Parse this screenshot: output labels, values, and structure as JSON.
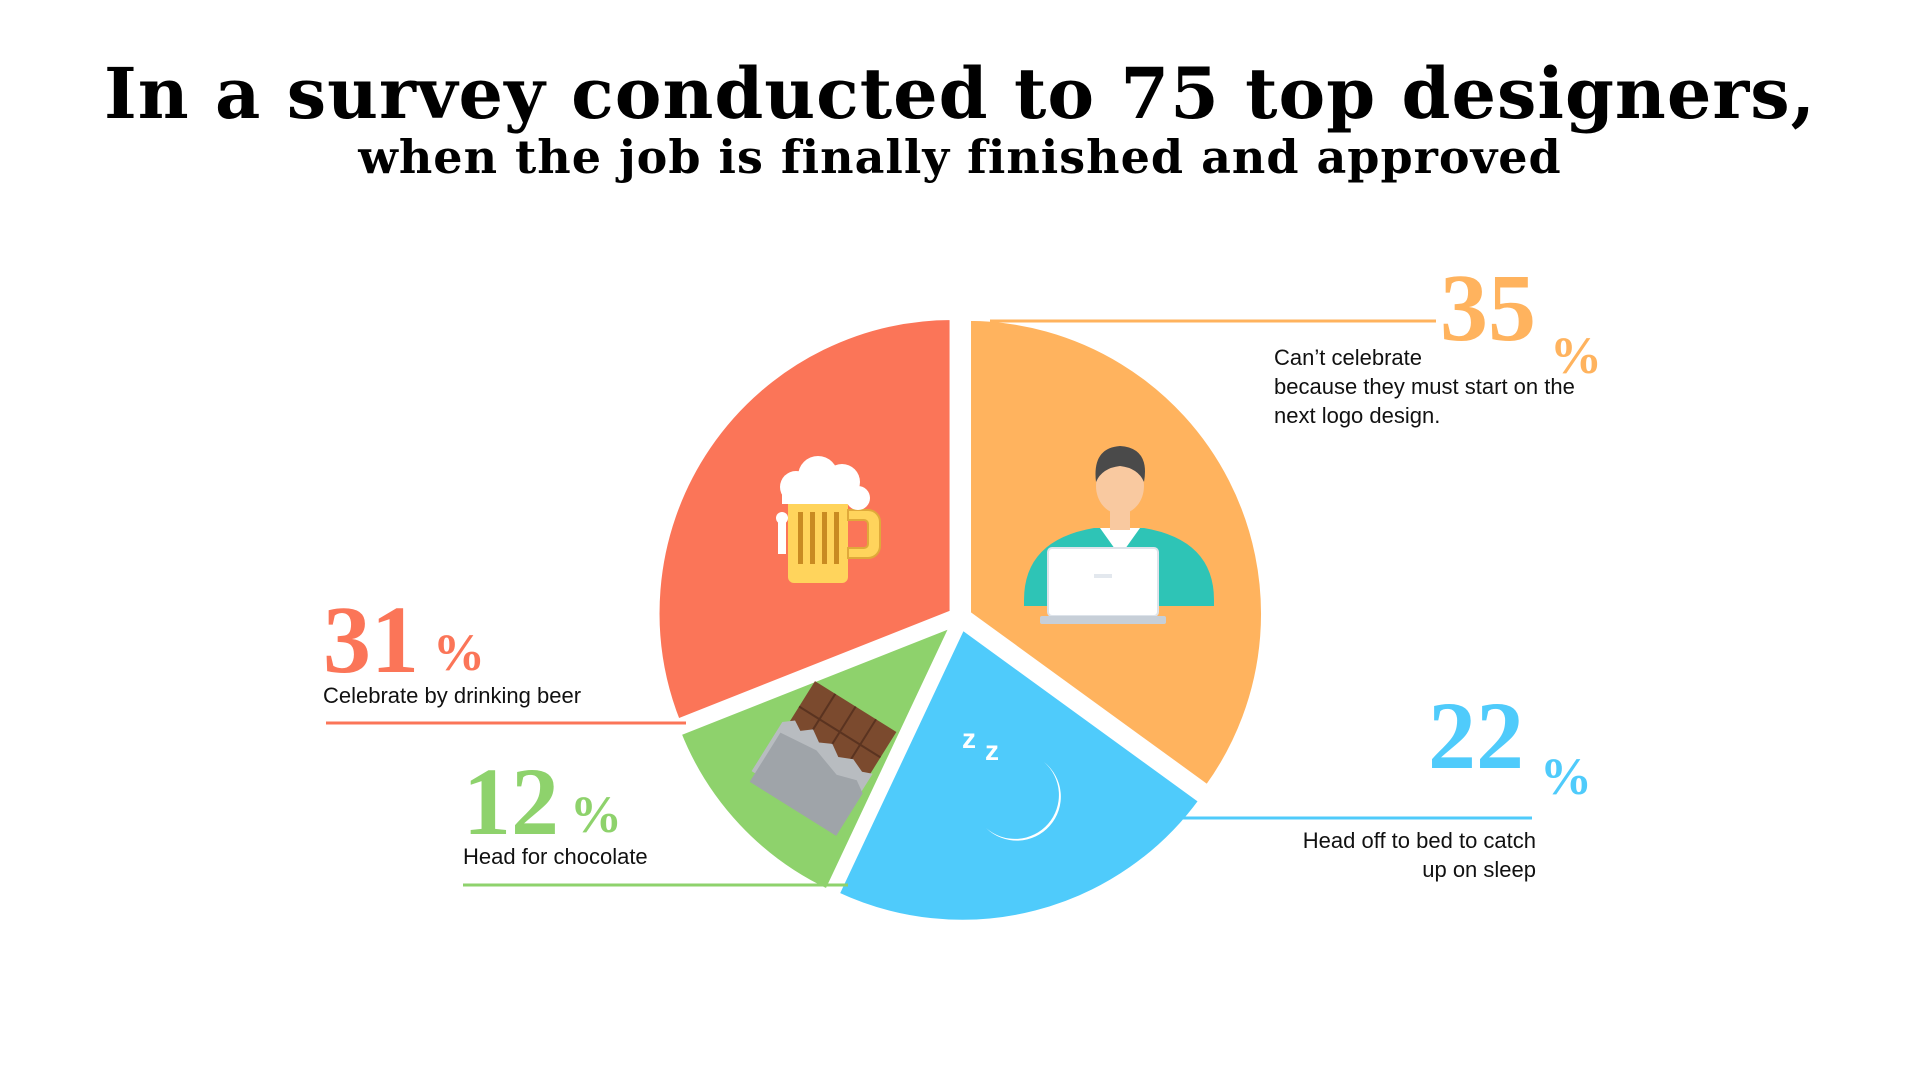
{
  "header": {
    "title": "In a survey conducted to 75 top designers,",
    "subtitle": "when the job is finally finished and approved"
  },
  "chart_data": {
    "type": "pie",
    "title": "In a survey conducted to 75 top designers,",
    "subtitle": "when the job is finally finished and approved",
    "unit": "%",
    "slices": [
      {
        "label": "Can't celebrate because they must start on the next logo design.",
        "label_lines": [
          "Can’t celebrate",
          "because they must start on the",
          "next logo design."
        ],
        "value": 35,
        "value_text": "35",
        "color": "#FFB35E",
        "icon": "designer-laptop-icon"
      },
      {
        "label": "Head off to bed to catch up on sleep",
        "label_lines": [
          "Head off to bed to catch",
          "up on sleep"
        ],
        "value": 22,
        "value_text": "22",
        "color": "#4FCBFB",
        "icon": "moon-sleep-icon"
      },
      {
        "label": "Head for chocolate",
        "label_lines": [
          "Head for chocolate"
        ],
        "value": 12,
        "value_text": "12",
        "color": "#8ED26C",
        "icon": "chocolate-bar-icon"
      },
      {
        "label": "Celebrate by drinking beer",
        "label_lines": [
          "Celebrate by drinking beer"
        ],
        "value": 31,
        "value_text": "31",
        "color": "#FB7558",
        "icon": "beer-mug-icon"
      }
    ],
    "sleep_icon_text": "z z"
  }
}
